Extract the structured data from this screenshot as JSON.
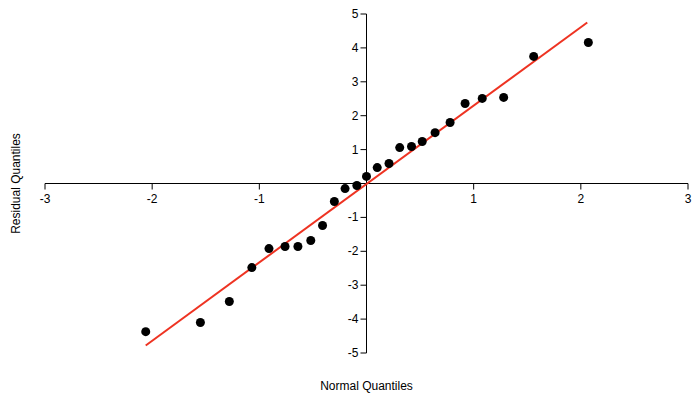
{
  "chart_data": {
    "type": "scatter",
    "x_label": "Normal Quantiles",
    "y_label": "Residual Quantiles",
    "xlim": [
      -3,
      3
    ],
    "ylim": [
      -5,
      5
    ],
    "xticks": [
      -3,
      -2,
      -1,
      1,
      2,
      3
    ],
    "yticks": [
      -5,
      -4,
      -3,
      -2,
      -1,
      1,
      2,
      3,
      4,
      5
    ],
    "grid": false,
    "series": [
      {
        "type": "scatter",
        "color": "#000000",
        "marker": "circle",
        "x": [
          -2.06,
          -1.55,
          -1.28,
          -1.07,
          -0.91,
          -0.76,
          -0.64,
          -0.52,
          -0.41,
          -0.3,
          -0.2,
          -0.09,
          0.0,
          0.1,
          0.21,
          0.31,
          0.42,
          0.52,
          0.64,
          0.78,
          0.92,
          1.08,
          1.28,
          1.56,
          2.07
        ],
        "values": [
          -4.37,
          -4.1,
          -3.48,
          -2.48,
          -1.92,
          -1.86,
          -1.86,
          -1.68,
          -1.24,
          -0.53,
          -0.15,
          -0.06,
          0.21,
          0.47,
          0.59,
          1.06,
          1.09,
          1.24,
          1.5,
          1.8,
          2.36,
          2.51,
          2.54,
          3.75,
          4.16
        ]
      },
      {
        "type": "line",
        "color": "#ee3322",
        "line_style": "solid",
        "x": [
          -2.06,
          2.06
        ],
        "values": [
          -4.78,
          4.75
        ]
      }
    ]
  }
}
